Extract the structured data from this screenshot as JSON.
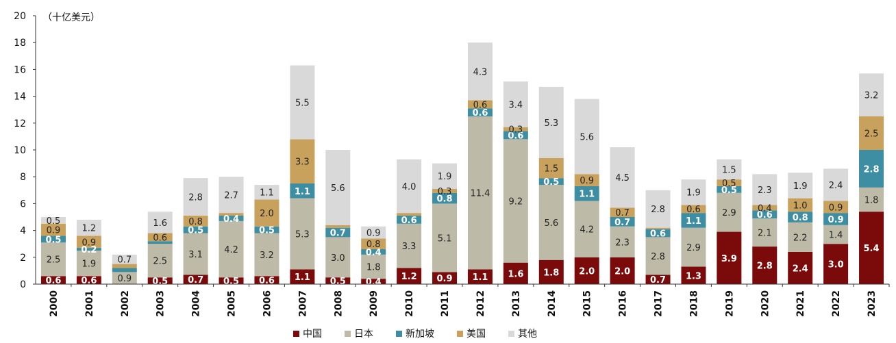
{
  "chart_data": {
    "type": "bar",
    "stacked": true,
    "title": "",
    "unit_label": "（十亿美元）",
    "xlabel": "",
    "ylabel": "",
    "ylim": [
      0,
      20
    ],
    "yticks": [
      0,
      2,
      4,
      6,
      8,
      10,
      12,
      14,
      16,
      18,
      20
    ],
    "grid": false,
    "legend_position": "bottom",
    "categories": [
      "2000",
      "2001",
      "2002",
      "2003",
      "2004",
      "2005",
      "2006",
      "2007",
      "2008",
      "2009",
      "2010",
      "2011",
      "2012",
      "2013",
      "2014",
      "2015",
      "2016",
      "2017",
      "2018",
      "2019",
      "2020",
      "2021",
      "2022",
      "2023"
    ],
    "series": [
      {
        "name": "中国",
        "color": "#7b0a0a",
        "values": [
          0.6,
          0.6,
          0.0,
          0.5,
          0.7,
          0.5,
          0.6,
          1.1,
          0.5,
          0.4,
          1.2,
          0.9,
          1.1,
          1.6,
          1.8,
          2.0,
          2.0,
          0.7,
          1.3,
          3.9,
          2.8,
          2.4,
          3.0,
          5.4
        ],
        "labels": [
          "0.6",
          "0.6",
          "",
          "0.5",
          "0.7",
          "0.5",
          "0.6",
          "1.1",
          "0.5",
          "0.4",
          "1.2",
          "0.9",
          "1.1",
          "1.6",
          "1.8",
          "2.0",
          "2.0",
          "0.7",
          "1.3",
          "3.9",
          "2.8",
          "2.4",
          "3.0",
          "5.4"
        ]
      },
      {
        "name": "日本",
        "color": "#bdbba8",
        "values": [
          2.5,
          1.9,
          0.9,
          2.5,
          3.1,
          4.2,
          3.2,
          5.3,
          3.0,
          1.8,
          3.3,
          5.1,
          11.4,
          9.2,
          5.6,
          4.2,
          2.3,
          2.8,
          2.9,
          2.9,
          2.1,
          2.2,
          1.4,
          1.8
        ],
        "labels": [
          "2.5",
          "1.9",
          "0.9",
          "2.5",
          "3.1",
          "4.2",
          "3.2",
          "5.3",
          "3.0",
          "1.8",
          "3.3",
          "5.1",
          "11.4",
          "9.2",
          "5.6",
          "4.2",
          "2.3",
          "2.8",
          "2.9",
          "2.9",
          "2.1",
          "2.2",
          "1.4",
          "1.8"
        ]
      },
      {
        "name": "新加坡",
        "color": "#3d8ea3",
        "values": [
          0.5,
          0.2,
          0.3,
          0.2,
          0.5,
          0.4,
          0.5,
          1.1,
          0.7,
          0.4,
          0.6,
          0.8,
          0.6,
          0.6,
          0.5,
          1.1,
          0.7,
          0.6,
          1.1,
          0.5,
          0.6,
          0.8,
          0.9,
          2.8
        ],
        "labels": [
          "0.5",
          "0.2",
          "",
          "",
          "0.5",
          "0.4",
          "0.5",
          "1.1",
          "0.7",
          "0.4",
          "0.6",
          "0.8",
          "0.6",
          "0.6",
          "0.5",
          "1.1",
          "0.7",
          "0.6",
          "1.1",
          "0.5",
          "0.6",
          "0.8",
          "0.9",
          "2.8"
        ]
      },
      {
        "name": "美国",
        "color": "#c8a25c",
        "values": [
          0.9,
          0.9,
          0.3,
          0.6,
          0.8,
          0.2,
          2.0,
          3.3,
          0.2,
          0.8,
          0.2,
          0.3,
          0.6,
          0.3,
          1.5,
          0.9,
          0.7,
          0.1,
          0.6,
          0.5,
          0.4,
          1.0,
          0.9,
          2.5
        ],
        "labels": [
          "0.9",
          "0.9",
          "",
          "0.6",
          "0.8",
          "",
          "2.0",
          "3.3",
          "",
          "0.8",
          "",
          "0.3",
          "0.6",
          "0.3",
          "1.5",
          "0.9",
          "0.7",
          "",
          "0.6",
          "0.5",
          "0.4",
          "1.0",
          "0.9",
          "2.5"
        ]
      },
      {
        "name": "其他",
        "color": "#d9d9d9",
        "values": [
          0.5,
          1.2,
          0.7,
          1.6,
          2.8,
          2.7,
          1.1,
          5.5,
          5.6,
          0.9,
          4.0,
          1.9,
          4.3,
          3.4,
          5.3,
          5.6,
          4.5,
          2.8,
          1.9,
          1.5,
          2.3,
          1.9,
          2.4,
          3.2
        ],
        "labels": [
          "0.5",
          "1.2",
          "0.7",
          "1.6",
          "2.8",
          "2.7",
          "1.1",
          "5.5",
          "5.6",
          "0.9",
          "4.0",
          "1.9",
          "4.3",
          "3.4",
          "5.3",
          "5.6",
          "4.5",
          "2.8",
          "1.9",
          "1.5",
          "2.3",
          "1.9",
          "2.4",
          "3.2"
        ]
      }
    ]
  }
}
